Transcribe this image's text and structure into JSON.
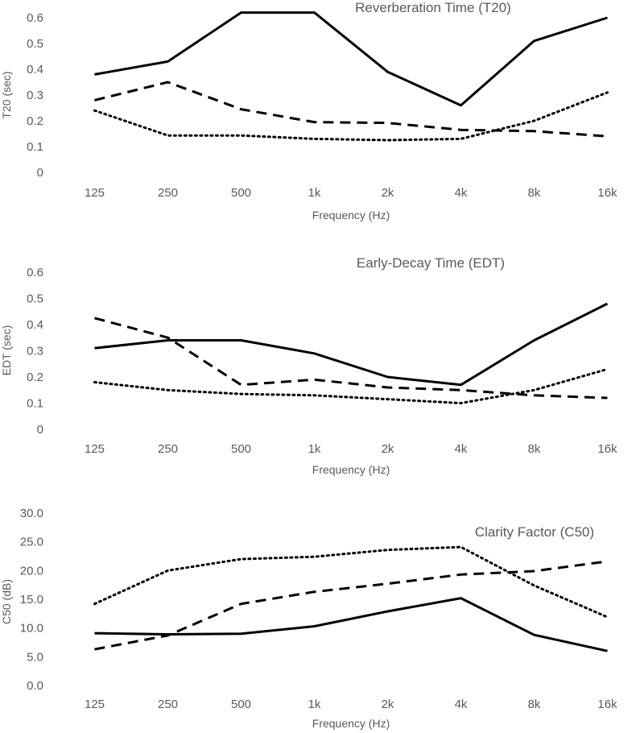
{
  "chart_data": [
    {
      "type": "line",
      "title": "Reverberation Time (T20)",
      "xlabel": "Frequency (Hz)",
      "ylabel": "T20 (sec)",
      "categories": [
        "125",
        "250",
        "500",
        "1k",
        "2k",
        "4k",
        "8k",
        "16k"
      ],
      "ylim": [
        0,
        0.6
      ],
      "yticks": [
        "0",
        "0.1",
        "0.2",
        "0.3",
        "0.4",
        "0.5",
        "0.6"
      ],
      "series": [
        {
          "name": "solid",
          "style": "solid",
          "values": [
            0.38,
            0.43,
            0.62,
            0.62,
            0.39,
            0.26,
            0.51,
            0.6
          ]
        },
        {
          "name": "dashed",
          "style": "dashed",
          "values": [
            0.28,
            0.35,
            0.245,
            0.195,
            0.192,
            0.165,
            0.16,
            0.14
          ]
        },
        {
          "name": "dotted",
          "style": "dotted",
          "values": [
            0.24,
            0.143,
            0.143,
            0.13,
            0.125,
            0.13,
            0.2,
            0.31
          ]
        }
      ]
    },
    {
      "type": "line",
      "title": "Early-Decay Time (EDT)",
      "xlabel": "Frequency (Hz)",
      "ylabel": "EDT (sec)",
      "categories": [
        "125",
        "250",
        "500",
        "1k",
        "2k",
        "4k",
        "8k",
        "16k"
      ],
      "ylim": [
        0,
        0.6
      ],
      "yticks": [
        "0",
        "0.1",
        "0.2",
        "0.3",
        "0.4",
        "0.5",
        "0.6"
      ],
      "series": [
        {
          "name": "solid",
          "style": "solid",
          "values": [
            0.31,
            0.34,
            0.34,
            0.29,
            0.2,
            0.17,
            0.34,
            0.48
          ]
        },
        {
          "name": "dashed",
          "style": "dashed",
          "values": [
            0.425,
            0.35,
            0.17,
            0.19,
            0.16,
            0.15,
            0.13,
            0.12
          ]
        },
        {
          "name": "dotted",
          "style": "dotted",
          "values": [
            0.18,
            0.15,
            0.135,
            0.13,
            0.115,
            0.1,
            0.15,
            0.23
          ]
        }
      ]
    },
    {
      "type": "line",
      "title": "Clarity Factor (C50)",
      "xlabel": "Frequency (Hz)",
      "ylabel": "C50 (dB)",
      "categories": [
        "125",
        "250",
        "500",
        "1k",
        "2k",
        "4k",
        "8k",
        "16k"
      ],
      "ylim": [
        0,
        30
      ],
      "yticks": [
        "0.0",
        "5.0",
        "10.0",
        "15.0",
        "20.0",
        "25.0",
        "30.0"
      ],
      "series": [
        {
          "name": "solid",
          "style": "solid",
          "values": [
            9.1,
            8.9,
            9.0,
            10.3,
            12.9,
            15.2,
            8.8,
            6.0
          ]
        },
        {
          "name": "dashed",
          "style": "dashed",
          "values": [
            6.3,
            8.7,
            14.2,
            16.3,
            17.7,
            19.3,
            19.9,
            21.6
          ]
        },
        {
          "name": "dotted",
          "style": "dotted",
          "values": [
            14.2,
            20.0,
            22.0,
            22.4,
            23.6,
            24.1,
            17.4,
            11.9
          ]
        }
      ]
    }
  ]
}
